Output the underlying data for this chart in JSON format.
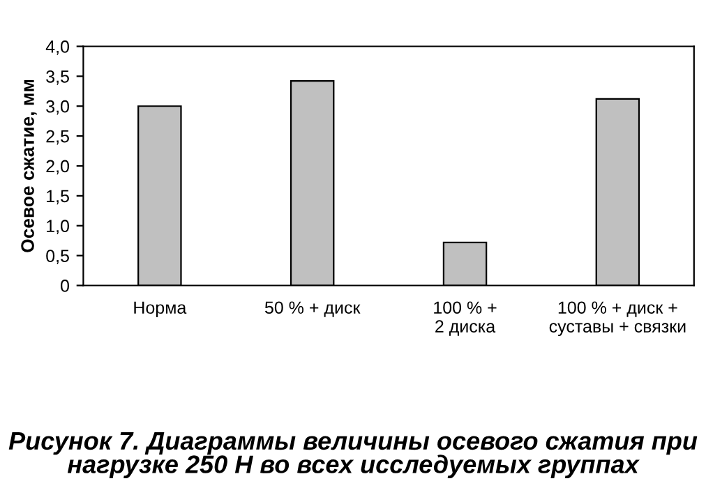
{
  "chart_data": {
    "type": "bar",
    "title": "Рисунок 7. Диаграммы величины осевого сжатия при нагрузке 250 Н во всех исследуемых группах",
    "ylabel": "Осевое сжатие, мм",
    "categories": [
      "Норма",
      "50 % + диск",
      "100 % +\n2 диска",
      "100 % + диск +\nсуставы + связки"
    ],
    "values": [
      3.0,
      3.42,
      0.72,
      3.12
    ],
    "color": "#c0c0c0",
    "ylim": [
      0,
      4
    ],
    "yticks": [
      0,
      {
        "value": 0.5,
        "label": "0,5"
      },
      {
        "value": 1,
        "label": "1,0"
      },
      {
        "value": 1.5,
        "label": "1,5"
      },
      {
        "value": 2,
        "label": "2,0"
      },
      {
        "value": 2.5,
        "label": "2,5"
      },
      {
        "value": 3,
        "label": "3,0"
      },
      {
        "value": 3.5,
        "label": "3,5"
      },
      {
        "value": 4,
        "label": "4,0"
      }
    ],
    "grid": false,
    "legend": false
  }
}
